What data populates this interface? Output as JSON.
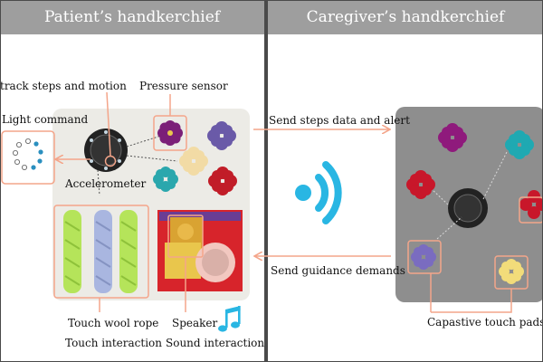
{
  "headers": {
    "left": "Patient’s handkerchief",
    "right": "Caregiver’s handkerchief"
  },
  "patient": {
    "track_label": "track steps and motion",
    "light_label": "Light command",
    "pressure_label": "Pressure sensor",
    "accelerometer_label": "Accelerometer",
    "wool_label": "Touch wool rope",
    "touch_interaction_label": "Touch interaction",
    "speaker_label": "Speaker",
    "sound_interaction_label": "Sound interaction"
  },
  "links": {
    "send_steps_label": "Send steps data and alert",
    "send_guidance_label": "Send guidance demands"
  },
  "caregiver": {
    "touch_pads_label": "Capastive touch pads"
  },
  "colors": {
    "header_bg": "#9e9e9e",
    "arrow": "#f4a58a",
    "wifi": "#29b6e3",
    "music_note": "#29b6e3",
    "divider": "#4a4a4a"
  }
}
